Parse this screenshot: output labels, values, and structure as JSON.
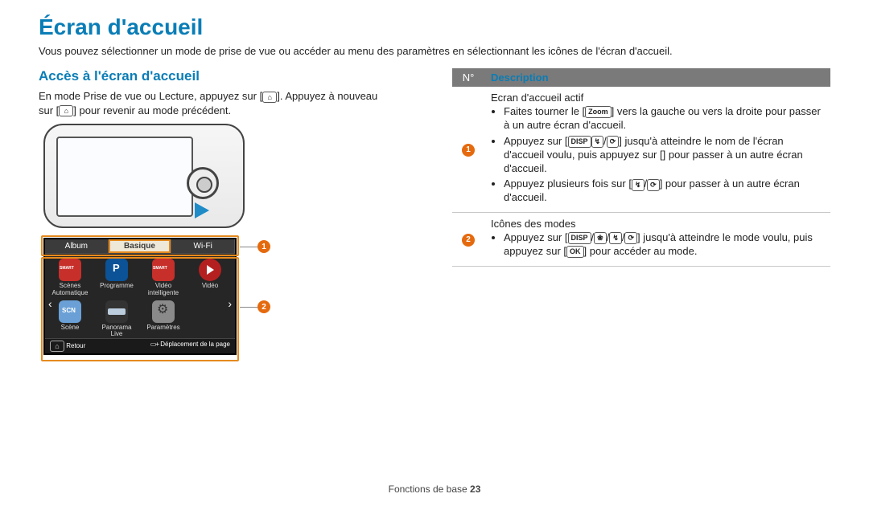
{
  "title": "Écran d'accueil",
  "intro": "Vous pouvez sélectionner un mode de prise de vue ou accéder au menu des paramètres en sélectionnant les icônes de l'écran d'accueil.",
  "section": {
    "heading": "Accès à l'écran d'accueil",
    "line1_a": "En mode Prise de vue ou Lecture, appuyez sur [",
    "line1_b": "]. Appuyez à nouveau sur [",
    "line1_c": "] pour revenir au mode précédent.",
    "home_glyph": "⌂"
  },
  "screen": {
    "tabs": {
      "left": "Album",
      "center": "Basique",
      "right": "Wi-Fi"
    },
    "apps": [
      {
        "label_l1": "Scènes",
        "label_l2": "Automatique",
        "cls": "smart"
      },
      {
        "label_l1": "Programme",
        "label_l2": "",
        "cls": "prog"
      },
      {
        "label_l1": "Vidéo",
        "label_l2": "intelligente",
        "cls": "smart"
      },
      {
        "label_l1": "Vidéo",
        "label_l2": "",
        "cls": "video"
      },
      {
        "label_l1": "Scène",
        "label_l2": "",
        "cls": "scn"
      },
      {
        "label_l1": "Panorama",
        "label_l2": "Live",
        "cls": "pano"
      },
      {
        "label_l1": "Paramètres",
        "label_l2": "",
        "cls": "sett"
      }
    ],
    "status_left_icon": "⌂",
    "status_left": "Retour",
    "status_right": "Déplacement de la page",
    "chev_l": "‹",
    "chev_r": "›"
  },
  "callouts": {
    "one": "1",
    "two": "2"
  },
  "table": {
    "head_num": "N°",
    "head_desc": "Description",
    "rows": [
      {
        "num": "1",
        "title": "Ecran d'accueil actif",
        "bullets": [
          {
            "pre": "Faites tourner le [",
            "btn": "Zoom",
            "post": "] vers la gauche ou vers la droite pour passer à un autre écran d'accueil."
          },
          {
            "pre": "Appuyez sur [",
            "btn": "DISP",
            "post": "] jusqu'à atteindre le nom de l'écran d'accueil voulu, puis appuyez sur [",
            "icon1": "↯",
            "sep": "/",
            "icon2": "⟳",
            "post2": "] pour passer à un autre écran d'accueil."
          },
          {
            "pre": "Appuyez plusieurs fois sur [",
            "icon1": "↯",
            "sep": "/",
            "icon2": "⟳",
            "post": "] pour passer à un autre écran d'accueil."
          }
        ]
      },
      {
        "num": "2",
        "title": "Icônes des modes",
        "bullets": [
          {
            "pre": "Appuyez sur [",
            "btn": "DISP",
            "sep1": "/",
            "icon1": "❀",
            "sep2": "/",
            "icon2": "↯",
            "sep3": "/",
            "icon3": "⟳",
            "post": "] jusqu'à atteindre le mode voulu, puis appuyez sur [",
            "btn2": "OK",
            "post2": "] pour accéder au mode."
          }
        ]
      }
    ]
  },
  "footer": {
    "text": "Fonctions de base  ",
    "page": "23"
  },
  "colors": {
    "accent": "#0a7db6",
    "callout": "#e56a0e",
    "outline": "#e58a1e"
  }
}
